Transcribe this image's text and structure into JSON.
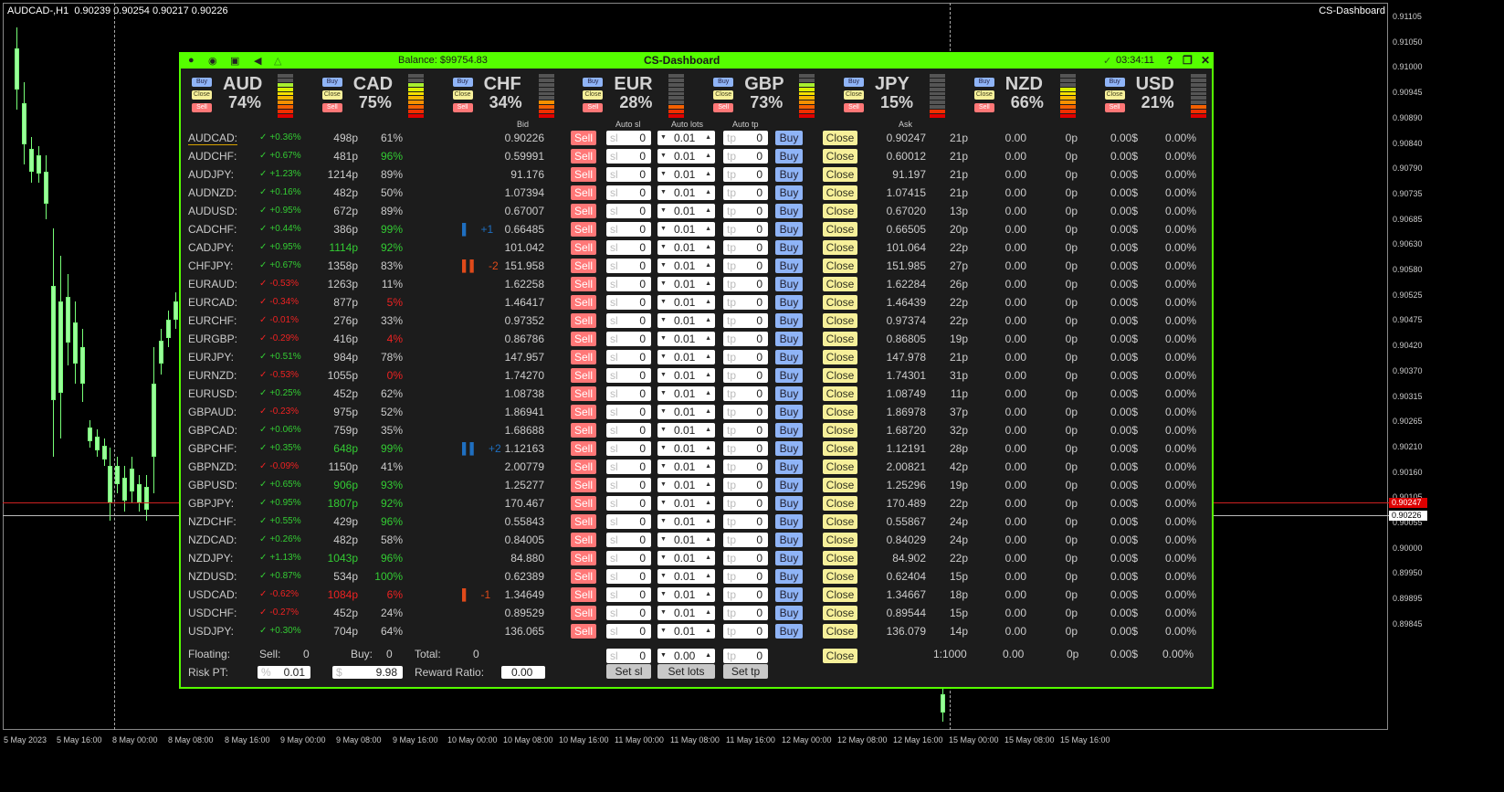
{
  "chart": {
    "title": "AUDCAD-,H1  0.90239 0.90254 0.90217 0.90226",
    "indicator_label": "CS-Dashboard",
    "price_ticks": [
      "0.91105",
      "0.91050",
      "0.91000",
      "0.90945",
      "0.90890",
      "0.90840",
      "0.90790",
      "0.90735",
      "0.90685",
      "0.90630",
      "0.90580",
      "0.90525",
      "0.90475",
      "0.90420",
      "0.90370",
      "0.90315",
      "0.90265",
      "0.90210",
      "0.90160",
      "0.90105",
      "0.90055",
      "0.90000",
      "0.89950",
      "0.89895",
      "0.89845"
    ],
    "ask_tag": "0.90247",
    "bid_tag": "0.90226",
    "time_ticks": [
      "5 May 2023",
      "5 May 16:00",
      "8 May 00:00",
      "8 May 08:00",
      "8 May 16:00",
      "9 May 00:00",
      "9 May 08:00",
      "9 May 16:00",
      "10 May 00:00",
      "10 May 08:00",
      "10 May 16:00",
      "11 May 00:00",
      "11 May 08:00",
      "11 May 16:00",
      "12 May 00:00",
      "12 May 08:00",
      "12 May 16:00",
      "15 May 00:00",
      "15 May 08:00",
      "15 May 16:00"
    ]
  },
  "dashboard": {
    "title": "CS-Dashboard",
    "balance": "Balance: $99754.83",
    "time": "03:34:11",
    "toolbar_icons": [
      "chart-icon",
      "eye-icon",
      "refresh-icon",
      "sound-icon",
      "alert-bell-icon"
    ],
    "window_controls": [
      "?",
      "❐",
      "✕"
    ],
    "currency_buttons": {
      "buy": "Buy",
      "close": "Close",
      "sell": "Sell"
    },
    "currencies": [
      {
        "code": "AUD",
        "pct": "74%",
        "level": 8
      },
      {
        "code": "CAD",
        "pct": "75%",
        "level": 8
      },
      {
        "code": "CHF",
        "pct": "34%",
        "level": 4
      },
      {
        "code": "EUR",
        "pct": "28%",
        "level": 3
      },
      {
        "code": "GBP",
        "pct": "73%",
        "level": 8
      },
      {
        "code": "JPY",
        "pct": "15%",
        "level": 2
      },
      {
        "code": "NZD",
        "pct": "66%",
        "level": 7
      },
      {
        "code": "USD",
        "pct": "21%",
        "level": 3
      }
    ],
    "meter_colors": [
      "#e00000",
      "#f03000",
      "#f56000",
      "#f59000",
      "#f5b800",
      "#f5e000",
      "#d9f000",
      "#a8f030",
      "#80f000",
      "#555555"
    ],
    "column_headers": {
      "bid": "Bid",
      "auto_sl": "Auto sl",
      "auto_lots": "Auto lots",
      "auto_tp": "Auto tp",
      "ask": "Ask"
    },
    "row_labels": {
      "sell": "Sell",
      "buy": "Buy",
      "close": "Close",
      "sl_ph": "sl",
      "tp_ph": "tp"
    },
    "pairs": [
      {
        "pair": "AUDCAD:",
        "dir": "up",
        "chg": "+0.36%",
        "pips": "498p",
        "pips_c": "w",
        "str": "61%",
        "str_c": "w",
        "sig": "",
        "sig_n": "",
        "sig_c": "",
        "bid": "0.90226",
        "sl": "0",
        "lots": "0.01",
        "tp": "0",
        "ask": "0.90247",
        "spread": "21p",
        "lot": "0.00",
        "pp": "0p",
        "profit": "0.00$",
        "pct": "0.00%"
      },
      {
        "pair": "AUDCHF:",
        "dir": "up",
        "chg": "+0.67%",
        "pips": "481p",
        "pips_c": "w",
        "str": "96%",
        "str_c": "g",
        "sig": "",
        "sig_n": "",
        "sig_c": "",
        "bid": "0.59991",
        "sl": "0",
        "lots": "0.01",
        "tp": "0",
        "ask": "0.60012",
        "spread": "21p",
        "lot": "0.00",
        "pp": "0p",
        "profit": "0.00$",
        "pct": "0.00%"
      },
      {
        "pair": "AUDJPY:",
        "dir": "up",
        "chg": "+1.23%",
        "pips": "1214p",
        "pips_c": "w",
        "str": "89%",
        "str_c": "w",
        "sig": "",
        "sig_n": "",
        "sig_c": "",
        "bid": "91.176",
        "sl": "0",
        "lots": "0.01",
        "tp": "0",
        "ask": "91.197",
        "spread": "21p",
        "lot": "0.00",
        "pp": "0p",
        "profit": "0.00$",
        "pct": "0.00%"
      },
      {
        "pair": "AUDNZD:",
        "dir": "up",
        "chg": "+0.16%",
        "pips": "482p",
        "pips_c": "w",
        "str": "50%",
        "str_c": "w",
        "sig": "",
        "sig_n": "",
        "sig_c": "",
        "bid": "1.07394",
        "sl": "0",
        "lots": "0.01",
        "tp": "0",
        "ask": "1.07415",
        "spread": "21p",
        "lot": "0.00",
        "pp": "0p",
        "profit": "0.00$",
        "pct": "0.00%"
      },
      {
        "pair": "AUDUSD:",
        "dir": "up",
        "chg": "+0.95%",
        "pips": "672p",
        "pips_c": "w",
        "str": "89%",
        "str_c": "w",
        "sig": "",
        "sig_n": "",
        "sig_c": "",
        "bid": "0.67007",
        "sl": "0",
        "lots": "0.01",
        "tp": "0",
        "ask": "0.67020",
        "spread": "13p",
        "lot": "0.00",
        "pp": "0p",
        "profit": "0.00$",
        "pct": "0.00%"
      },
      {
        "pair": "CADCHF:",
        "dir": "up",
        "chg": "+0.44%",
        "pips": "386p",
        "pips_c": "w",
        "str": "99%",
        "str_c": "g",
        "sig": "▌",
        "sig_n": "+1",
        "sig_c": "blue",
        "bid": "0.66485",
        "sl": "0",
        "lots": "0.01",
        "tp": "0",
        "ask": "0.66505",
        "spread": "20p",
        "lot": "0.00",
        "pp": "0p",
        "profit": "0.00$",
        "pct": "0.00%"
      },
      {
        "pair": "CADJPY:",
        "dir": "up",
        "chg": "+0.95%",
        "pips": "1114p",
        "pips_c": "g",
        "str": "92%",
        "str_c": "g",
        "sig": "",
        "sig_n": "",
        "sig_c": "",
        "bid": "101.042",
        "sl": "0",
        "lots": "0.01",
        "tp": "0",
        "ask": "101.064",
        "spread": "22p",
        "lot": "0.00",
        "pp": "0p",
        "profit": "0.00$",
        "pct": "0.00%"
      },
      {
        "pair": "CHFJPY:",
        "dir": "up",
        "chg": "+0.67%",
        "pips": "1358p",
        "pips_c": "w",
        "str": "83%",
        "str_c": "w",
        "sig": "▌▌",
        "sig_n": "-2",
        "sig_c": "orange",
        "bid": "151.958",
        "sl": "0",
        "lots": "0.01",
        "tp": "0",
        "ask": "151.985",
        "spread": "27p",
        "lot": "0.00",
        "pp": "0p",
        "profit": "0.00$",
        "pct": "0.00%"
      },
      {
        "pair": "EURAUD:",
        "dir": "down",
        "chg": "-0.53%",
        "pips": "1263p",
        "pips_c": "w",
        "str": "11%",
        "str_c": "w",
        "sig": "",
        "sig_n": "",
        "sig_c": "",
        "bid": "1.62258",
        "sl": "0",
        "lots": "0.01",
        "tp": "0",
        "ask": "1.62284",
        "spread": "26p",
        "lot": "0.00",
        "pp": "0p",
        "profit": "0.00$",
        "pct": "0.00%"
      },
      {
        "pair": "EURCAD:",
        "dir": "down",
        "chg": "-0.34%",
        "pips": "877p",
        "pips_c": "w",
        "str": "5%",
        "str_c": "r",
        "sig": "",
        "sig_n": "",
        "sig_c": "",
        "bid": "1.46417",
        "sl": "0",
        "lots": "0.01",
        "tp": "0",
        "ask": "1.46439",
        "spread": "22p",
        "lot": "0.00",
        "pp": "0p",
        "profit": "0.00$",
        "pct": "0.00%"
      },
      {
        "pair": "EURCHF:",
        "dir": "down",
        "chg": "-0.01%",
        "pips": "276p",
        "pips_c": "w",
        "str": "33%",
        "str_c": "w",
        "sig": "",
        "sig_n": "",
        "sig_c": "",
        "bid": "0.97352",
        "sl": "0",
        "lots": "0.01",
        "tp": "0",
        "ask": "0.97374",
        "spread": "22p",
        "lot": "0.00",
        "pp": "0p",
        "profit": "0.00$",
        "pct": "0.00%"
      },
      {
        "pair": "EURGBP:",
        "dir": "down",
        "chg": "-0.29%",
        "pips": "416p",
        "pips_c": "w",
        "str": "4%",
        "str_c": "r",
        "sig": "",
        "sig_n": "",
        "sig_c": "",
        "bid": "0.86786",
        "sl": "0",
        "lots": "0.01",
        "tp": "0",
        "ask": "0.86805",
        "spread": "19p",
        "lot": "0.00",
        "pp": "0p",
        "profit": "0.00$",
        "pct": "0.00%"
      },
      {
        "pair": "EURJPY:",
        "dir": "up",
        "chg": "+0.51%",
        "pips": "984p",
        "pips_c": "w",
        "str": "78%",
        "str_c": "w",
        "sig": "",
        "sig_n": "",
        "sig_c": "",
        "bid": "147.957",
        "sl": "0",
        "lots": "0.01",
        "tp": "0",
        "ask": "147.978",
        "spread": "21p",
        "lot": "0.00",
        "pp": "0p",
        "profit": "0.00$",
        "pct": "0.00%"
      },
      {
        "pair": "EURNZD:",
        "dir": "down",
        "chg": "-0.53%",
        "pips": "1055p",
        "pips_c": "w",
        "str": "0%",
        "str_c": "r",
        "sig": "",
        "sig_n": "",
        "sig_c": "",
        "bid": "1.74270",
        "sl": "0",
        "lots": "0.01",
        "tp": "0",
        "ask": "1.74301",
        "spread": "31p",
        "lot": "0.00",
        "pp": "0p",
        "profit": "0.00$",
        "pct": "0.00%"
      },
      {
        "pair": "EURUSD:",
        "dir": "up",
        "chg": "+0.25%",
        "pips": "452p",
        "pips_c": "w",
        "str": "62%",
        "str_c": "w",
        "sig": "",
        "sig_n": "",
        "sig_c": "",
        "bid": "1.08738",
        "sl": "0",
        "lots": "0.01",
        "tp": "0",
        "ask": "1.08749",
        "spread": "11p",
        "lot": "0.00",
        "pp": "0p",
        "profit": "0.00$",
        "pct": "0.00%"
      },
      {
        "pair": "GBPAUD:",
        "dir": "down",
        "chg": "-0.23%",
        "pips": "975p",
        "pips_c": "w",
        "str": "52%",
        "str_c": "w",
        "sig": "",
        "sig_n": "",
        "sig_c": "",
        "bid": "1.86941",
        "sl": "0",
        "lots": "0.01",
        "tp": "0",
        "ask": "1.86978",
        "spread": "37p",
        "lot": "0.00",
        "pp": "0p",
        "profit": "0.00$",
        "pct": "0.00%"
      },
      {
        "pair": "GBPCAD:",
        "dir": "up",
        "chg": "+0.06%",
        "pips": "759p",
        "pips_c": "w",
        "str": "35%",
        "str_c": "w",
        "sig": "",
        "sig_n": "",
        "sig_c": "",
        "bid": "1.68688",
        "sl": "0",
        "lots": "0.01",
        "tp": "0",
        "ask": "1.68720",
        "spread": "32p",
        "lot": "0.00",
        "pp": "0p",
        "profit": "0.00$",
        "pct": "0.00%"
      },
      {
        "pair": "GBPCHF:",
        "dir": "up",
        "chg": "+0.35%",
        "pips": "648p",
        "pips_c": "g",
        "str": "99%",
        "str_c": "g",
        "sig": "▌▌",
        "sig_n": "+2",
        "sig_c": "blue",
        "bid": "1.12163",
        "sl": "0",
        "lots": "0.01",
        "tp": "0",
        "ask": "1.12191",
        "spread": "28p",
        "lot": "0.00",
        "pp": "0p",
        "profit": "0.00$",
        "pct": "0.00%"
      },
      {
        "pair": "GBPNZD:",
        "dir": "down",
        "chg": "-0.09%",
        "pips": "1150p",
        "pips_c": "w",
        "str": "41%",
        "str_c": "w",
        "sig": "",
        "sig_n": "",
        "sig_c": "",
        "bid": "2.00779",
        "sl": "0",
        "lots": "0.01",
        "tp": "0",
        "ask": "2.00821",
        "spread": "42p",
        "lot": "0.00",
        "pp": "0p",
        "profit": "0.00$",
        "pct": "0.00%"
      },
      {
        "pair": "GBPUSD:",
        "dir": "up",
        "chg": "+0.65%",
        "pips": "906p",
        "pips_c": "g",
        "str": "93%",
        "str_c": "g",
        "sig": "",
        "sig_n": "",
        "sig_c": "",
        "bid": "1.25277",
        "sl": "0",
        "lots": "0.01",
        "tp": "0",
        "ask": "1.25296",
        "spread": "19p",
        "lot": "0.00",
        "pp": "0p",
        "profit": "0.00$",
        "pct": "0.00%"
      },
      {
        "pair": "GBPJPY:",
        "dir": "up",
        "chg": "+0.95%",
        "pips": "1807p",
        "pips_c": "g",
        "str": "92%",
        "str_c": "g",
        "sig": "",
        "sig_n": "",
        "sig_c": "",
        "bid": "170.467",
        "sl": "0",
        "lots": "0.01",
        "tp": "0",
        "ask": "170.489",
        "spread": "22p",
        "lot": "0.00",
        "pp": "0p",
        "profit": "0.00$",
        "pct": "0.00%"
      },
      {
        "pair": "NZDCHF:",
        "dir": "up",
        "chg": "+0.55%",
        "pips": "429p",
        "pips_c": "w",
        "str": "96%",
        "str_c": "g",
        "sig": "",
        "sig_n": "",
        "sig_c": "",
        "bid": "0.55843",
        "sl": "0",
        "lots": "0.01",
        "tp": "0",
        "ask": "0.55867",
        "spread": "24p",
        "lot": "0.00",
        "pp": "0p",
        "profit": "0.00$",
        "pct": "0.00%"
      },
      {
        "pair": "NZDCAD:",
        "dir": "up",
        "chg": "+0.26%",
        "pips": "482p",
        "pips_c": "w",
        "str": "58%",
        "str_c": "w",
        "sig": "",
        "sig_n": "",
        "sig_c": "",
        "bid": "0.84005",
        "sl": "0",
        "lots": "0.01",
        "tp": "0",
        "ask": "0.84029",
        "spread": "24p",
        "lot": "0.00",
        "pp": "0p",
        "profit": "0.00$",
        "pct": "0.00%"
      },
      {
        "pair": "NZDJPY:",
        "dir": "up",
        "chg": "+1.13%",
        "pips": "1043p",
        "pips_c": "g",
        "str": "96%",
        "str_c": "g",
        "sig": "",
        "sig_n": "",
        "sig_c": "",
        "bid": "84.880",
        "sl": "0",
        "lots": "0.01",
        "tp": "0",
        "ask": "84.902",
        "spread": "22p",
        "lot": "0.00",
        "pp": "0p",
        "profit": "0.00$",
        "pct": "0.00%"
      },
      {
        "pair": "NZDUSD:",
        "dir": "up",
        "chg": "+0.87%",
        "pips": "534p",
        "pips_c": "w",
        "str": "100%",
        "str_c": "g",
        "sig": "",
        "sig_n": "",
        "sig_c": "",
        "bid": "0.62389",
        "sl": "0",
        "lots": "0.01",
        "tp": "0",
        "ask": "0.62404",
        "spread": "15p",
        "lot": "0.00",
        "pp": "0p",
        "profit": "0.00$",
        "pct": "0.00%"
      },
      {
        "pair": "USDCAD:",
        "dir": "down",
        "chg": "-0.62%",
        "pips": "1084p",
        "pips_c": "r",
        "str": "6%",
        "str_c": "r",
        "sig": "▌",
        "sig_n": "-1",
        "sig_c": "orange",
        "bid": "1.34649",
        "sl": "0",
        "lots": "0.01",
        "tp": "0",
        "ask": "1.34667",
        "spread": "18p",
        "lot": "0.00",
        "pp": "0p",
        "profit": "0.00$",
        "pct": "0.00%"
      },
      {
        "pair": "USDCHF:",
        "dir": "down",
        "chg": "-0.27%",
        "pips": "452p",
        "pips_c": "w",
        "str": "24%",
        "str_c": "w",
        "sig": "",
        "sig_n": "",
        "sig_c": "",
        "bid": "0.89529",
        "sl": "0",
        "lots": "0.01",
        "tp": "0",
        "ask": "0.89544",
        "spread": "15p",
        "lot": "0.00",
        "pp": "0p",
        "profit": "0.00$",
        "pct": "0.00%"
      },
      {
        "pair": "USDJPY:",
        "dir": "up",
        "chg": "+0.30%",
        "pips": "704p",
        "pips_c": "w",
        "str": "64%",
        "str_c": "w",
        "sig": "",
        "sig_n": "",
        "sig_c": "",
        "bid": "136.065",
        "sl": "0",
        "lots": "0.01",
        "tp": "0",
        "ask": "136.079",
        "spread": "14p",
        "lot": "0.00",
        "pp": "0p",
        "profit": "0.00$",
        "pct": "0.00%"
      }
    ],
    "footer": {
      "floating_label": "Floating:",
      "sell_label": "Sell:",
      "sell_val": "0",
      "buy_label": "Buy:",
      "buy_val": "0",
      "total_label": "Total:",
      "total_val": "0",
      "sl_ph": "sl",
      "sl_val": "0",
      "lots_val": "0.00",
      "tp_ph": "tp",
      "tp_val": "0",
      "close_label": "Close",
      "leverage": "1:1000",
      "lot": "0.00",
      "pp": "0p",
      "profit": "0.00$",
      "pct": "0.00%",
      "risk_label": "Risk PT:",
      "risk_pct_ph": "%",
      "risk_pct_val": "0.01",
      "risk_usd_ph": "$",
      "risk_usd_val": "9.98",
      "reward_label": "Reward Ratio:",
      "reward_val": "0.00",
      "set_sl": "Set sl",
      "set_lots": "Set lots",
      "set_tp": "Set tp"
    }
  }
}
